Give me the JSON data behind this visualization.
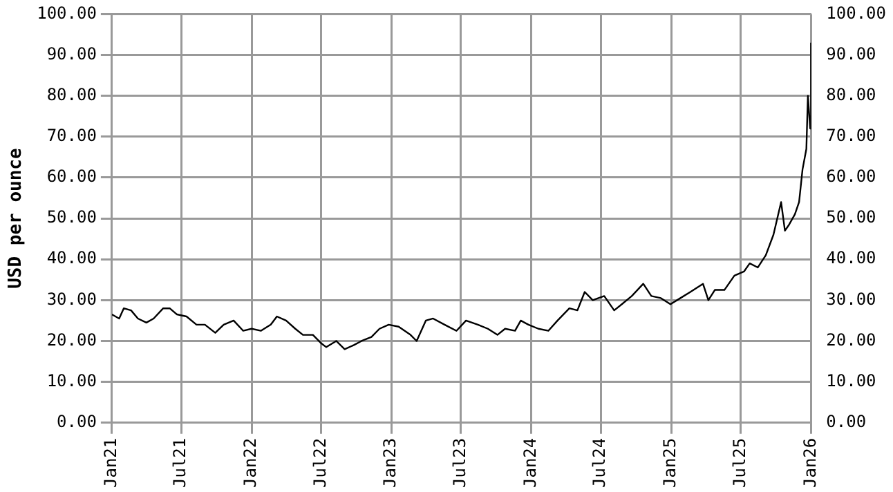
{
  "chart_data": {
    "type": "line",
    "ylabel": "USD per ounce",
    "y2label": null,
    "x": [
      "2021-01-01",
      "2021-01-20",
      "2021-02-01",
      "2021-02-20",
      "2021-03-10",
      "2021-04-01",
      "2021-04-20",
      "2021-05-15",
      "2021-06-01",
      "2021-06-20",
      "2021-07-15",
      "2021-08-10",
      "2021-09-01",
      "2021-09-28",
      "2021-10-20",
      "2021-11-15",
      "2021-12-10",
      "2022-01-01",
      "2022-01-25",
      "2022-02-20",
      "2022-03-08",
      "2022-04-01",
      "2022-04-25",
      "2022-05-15",
      "2022-06-10",
      "2022-07-01",
      "2022-07-15",
      "2022-08-10",
      "2022-09-01",
      "2022-09-25",
      "2022-10-15",
      "2022-11-10",
      "2022-12-01",
      "2022-12-25",
      "2023-01-20",
      "2023-02-20",
      "2023-03-08",
      "2023-04-01",
      "2023-04-20",
      "2023-05-20",
      "2023-06-20",
      "2023-07-15",
      "2023-08-15",
      "2023-09-10",
      "2023-10-05",
      "2023-10-25",
      "2023-11-20",
      "2023-12-05",
      "2023-12-25",
      "2024-01-20",
      "2024-02-15",
      "2024-03-10",
      "2024-04-10",
      "2024-05-01",
      "2024-05-20",
      "2024-06-10",
      "2024-07-10",
      "2024-08-05",
      "2024-08-25",
      "2024-09-20",
      "2024-10-20",
      "2024-11-10",
      "2024-12-05",
      "2024-12-30",
      "2025-01-25",
      "2025-02-20",
      "2025-03-25",
      "2025-04-08",
      "2025-04-25",
      "2025-05-20",
      "2025-06-15",
      "2025-07-10",
      "2025-07-25",
      "2025-08-15",
      "2025-09-05",
      "2025-09-25",
      "2025-10-15",
      "2025-10-25",
      "2025-11-05",
      "2025-11-20",
      "2025-12-01",
      "2025-12-10",
      "2025-12-20",
      "2025-12-24",
      "2025-12-30",
      "2026-01-01"
    ],
    "series": [
      {
        "color": "#000000",
        "values": [
          26.5,
          25.5,
          28,
          27.5,
          25.5,
          24.5,
          25.5,
          28,
          28,
          26.5,
          26,
          24,
          24,
          22,
          24,
          25,
          22.5,
          23,
          22.5,
          24,
          26,
          25,
          23,
          21.5,
          21.5,
          19.5,
          18.5,
          20,
          18,
          19,
          20,
          21,
          23,
          24,
          23.5,
          21.5,
          20,
          25,
          25.5,
          24,
          22.5,
          25,
          24,
          23,
          21.5,
          23,
          22.5,
          25,
          24,
          23,
          22.5,
          25,
          28,
          27.5,
          32,
          30,
          31,
          27.5,
          29,
          31,
          34,
          31,
          30.5,
          29,
          30.5,
          32,
          34,
          30,
          32.5,
          32.5,
          36,
          37,
          39,
          38,
          41,
          46,
          54,
          47,
          48.5,
          51,
          54,
          62,
          67,
          80,
          72,
          93
        ]
      }
    ],
    "xlim": [
      "2021-01-01",
      "2026-01-01"
    ],
    "xticks": [
      {
        "value": "2021-01-01",
        "label": "Jan21"
      },
      {
        "value": "2021-07-01",
        "label": "Jul21"
      },
      {
        "value": "2022-01-01",
        "label": "Jan22"
      },
      {
        "value": "2022-07-01",
        "label": "Jul22"
      },
      {
        "value": "2023-01-01",
        "label": "Jan23"
      },
      {
        "value": "2023-07-01",
        "label": "Jul23"
      },
      {
        "value": "2024-01-01",
        "label": "Jan24"
      },
      {
        "value": "2024-07-01",
        "label": "Jul24"
      },
      {
        "value": "2025-01-01",
        "label": "Jan25"
      },
      {
        "value": "2025-07-01",
        "label": "Jul25"
      },
      {
        "value": "2026-01-01",
        "label": "Jan26"
      }
    ],
    "ylim": [
      0,
      100
    ],
    "yticks": [
      {
        "value": 0,
        "label": "0.00"
      },
      {
        "value": 10,
        "label": "10.00"
      },
      {
        "value": 20,
        "label": "20.00"
      },
      {
        "value": 30,
        "label": "30.00"
      },
      {
        "value": 40,
        "label": "40.00"
      },
      {
        "value": 50,
        "label": "50.00"
      },
      {
        "value": 60,
        "label": "60.00"
      },
      {
        "value": 70,
        "label": "70.00"
      },
      {
        "value": 80,
        "label": "80.00"
      },
      {
        "value": 90,
        "label": "90.00"
      },
      {
        "value": 100,
        "label": "100.00"
      }
    ],
    "y2lim": [
      0,
      100
    ],
    "y2ticks": [
      {
        "value": 0,
        "label": "0.00"
      },
      {
        "value": 10,
        "label": "10.00"
      },
      {
        "value": 20,
        "label": "20.00"
      },
      {
        "value": 30,
        "label": "30.00"
      },
      {
        "value": 40,
        "label": "40.00"
      },
      {
        "value": 50,
        "label": "50.00"
      },
      {
        "value": 60,
        "label": "60.00"
      },
      {
        "value": 70,
        "label": "70.00"
      },
      {
        "value": 80,
        "label": "80.00"
      },
      {
        "value": 90,
        "label": "90.00"
      },
      {
        "value": 100,
        "label": "100.00"
      }
    ],
    "grid": true,
    "legend": false,
    "marker": "none",
    "line_style": "solid"
  }
}
